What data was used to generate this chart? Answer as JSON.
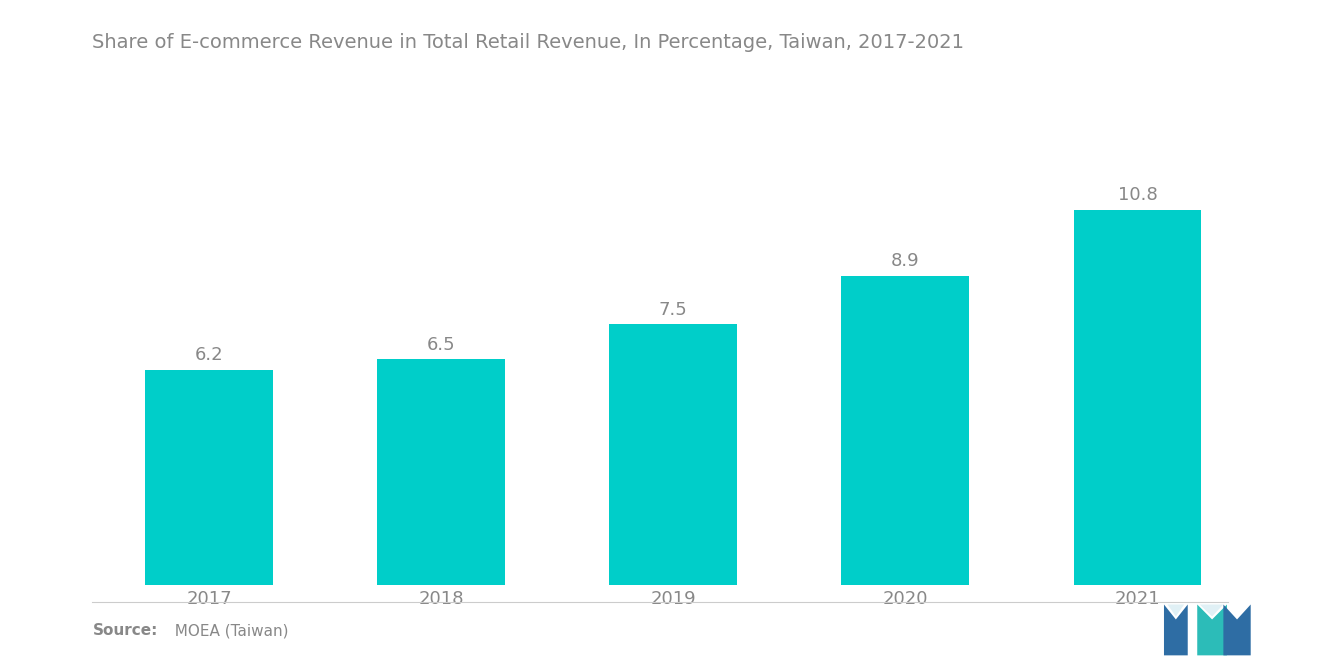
{
  "title": "Share of E-commerce Revenue in Total Retail Revenue, In Percentage, Taiwan, 2017-2021",
  "categories": [
    "2017",
    "2018",
    "2019",
    "2020",
    "2021"
  ],
  "values": [
    6.2,
    6.5,
    7.5,
    8.9,
    10.8
  ],
  "bar_color": "#00CEC9",
  "background_color": "#ffffff",
  "title_fontsize": 14,
  "tick_fontsize": 13,
  "value_label_fontsize": 13,
  "source_bold": "Source:",
  "source_normal": "  MOEA (Taiwan)",
  "source_fontsize": 11,
  "ylim": [
    0,
    13
  ],
  "bar_width": 0.55,
  "title_color": "#888888",
  "tick_color": "#888888",
  "value_label_color": "#888888",
  "source_color": "#888888",
  "logo_blue": "#2E6DA4",
  "logo_teal": "#2CBCB8"
}
